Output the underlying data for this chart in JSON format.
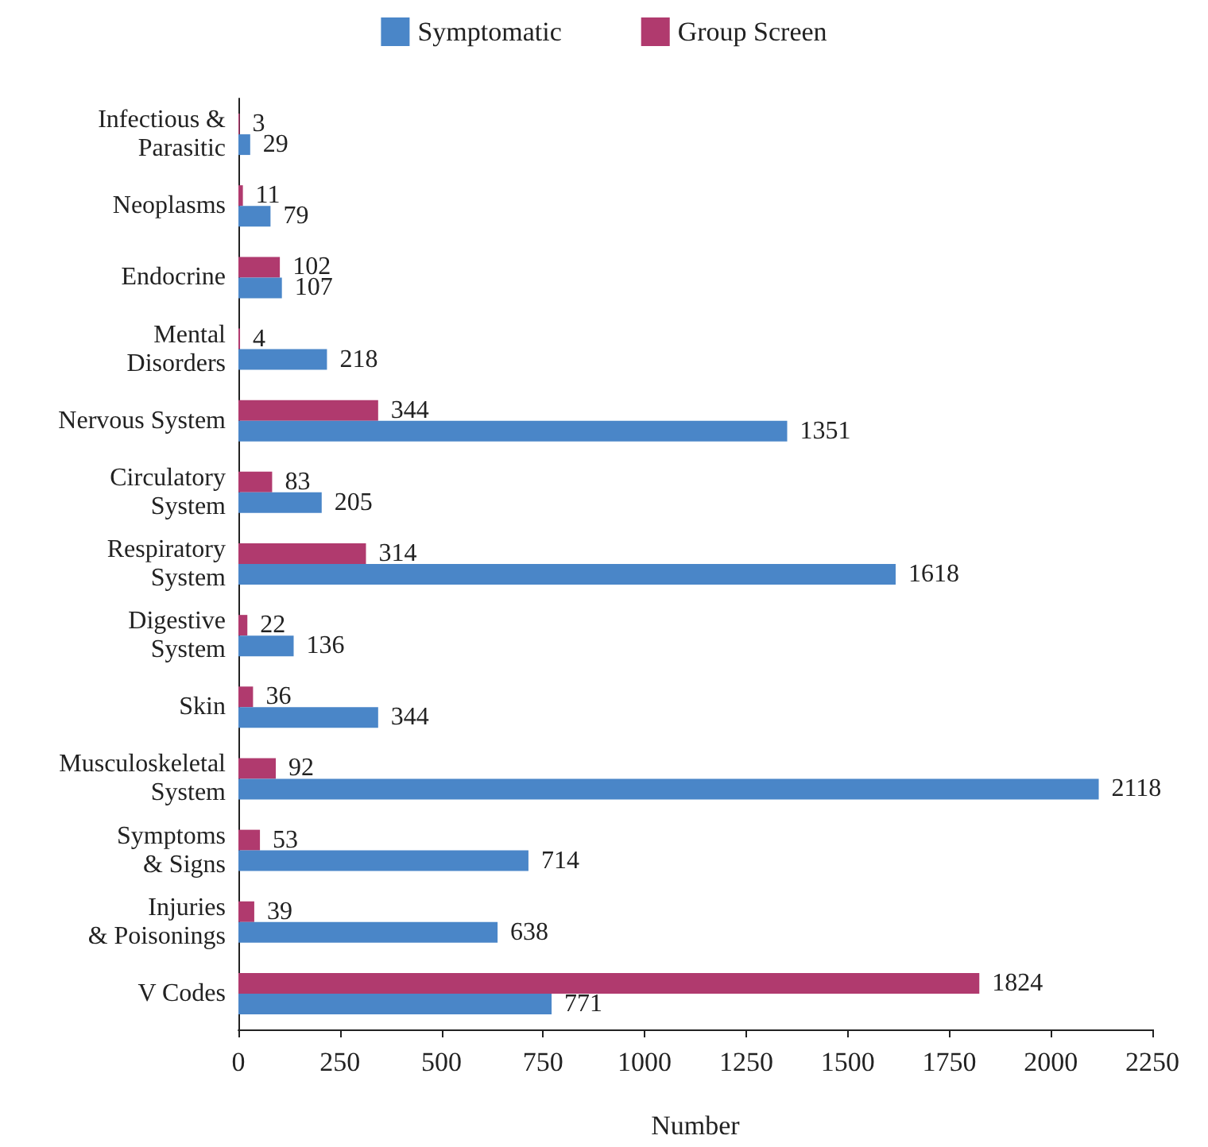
{
  "chart_data": {
    "type": "bar",
    "orientation": "horizontal",
    "xlabel": "Number",
    "categories": [
      "Infectious &\nParasitic",
      "Neoplasms",
      "Endocrine",
      "Mental\nDisorders",
      "Nervous System",
      "Circulatory\nSystem",
      "Respiratory\nSystem",
      "Digestive\nSystem",
      "Skin",
      "Musculoskeletal\nSystem",
      "Symptoms\n& Signs",
      "Injuries\n& Poisonings",
      "V Codes"
    ],
    "series": [
      {
        "name": "Group Screen",
        "color": "#b03a6e",
        "values": [
          3,
          11,
          102,
          4,
          344,
          83,
          314,
          22,
          36,
          92,
          53,
          39,
          1824
        ]
      },
      {
        "name": "Symptomatic",
        "color": "#4a86c8",
        "values": [
          29,
          79,
          107,
          218,
          1351,
          205,
          1618,
          136,
          344,
          2118,
          714,
          638,
          771
        ]
      }
    ],
    "xlim": [
      0,
      2250
    ],
    "xticks": [
      0,
      250,
      500,
      750,
      1000,
      1250,
      1500,
      1750,
      2000,
      2250
    ],
    "data_labels": true,
    "grid": false,
    "legend": "top"
  }
}
